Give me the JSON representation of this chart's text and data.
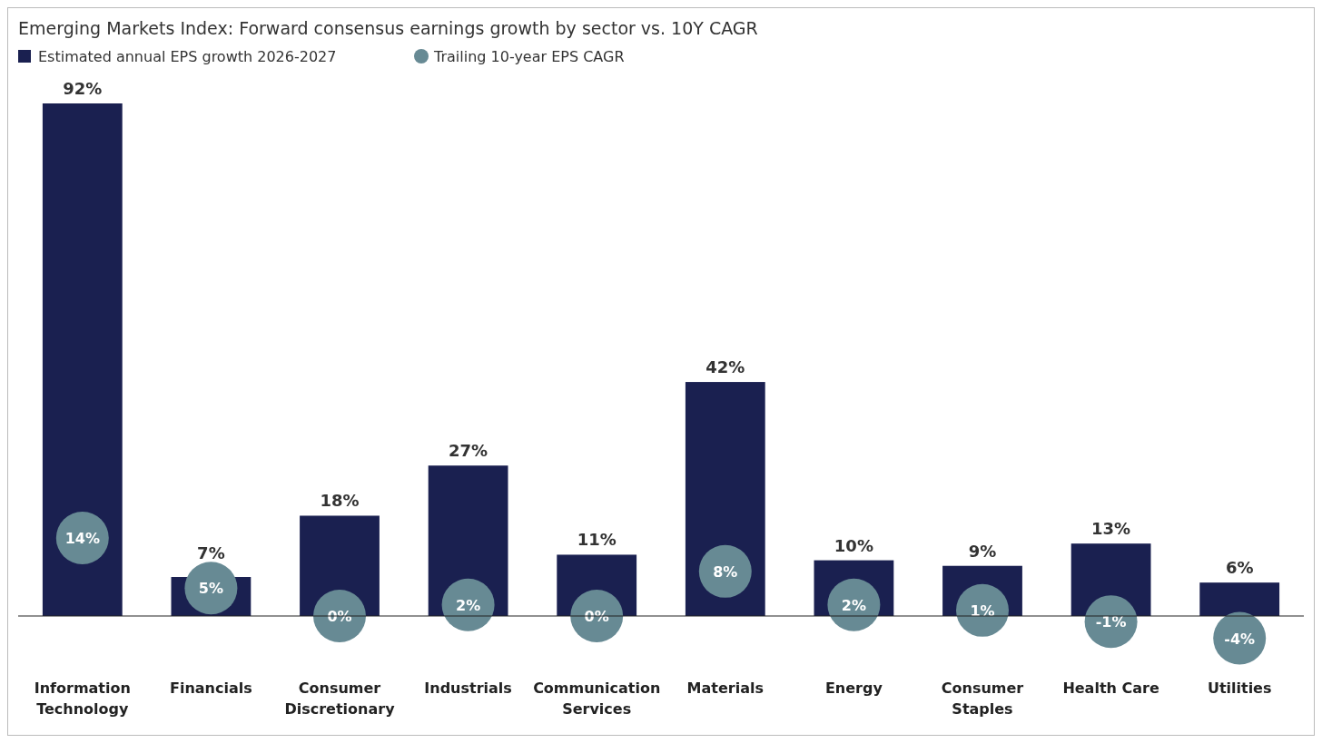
{
  "chart_data": {
    "type": "bar",
    "title": "Emerging Markets Index: Forward consensus earnings growth by sector vs. 10Y CAGR",
    "categories": [
      "Information Technology",
      "Financials",
      "Consumer Discretionary",
      "Industrials",
      "Communication Services",
      "Materials",
      "Energy",
      "Consumer Staples",
      "Health Care",
      "Utilities"
    ],
    "legend": "top left",
    "series": [
      {
        "name": "Estimated annual EPS growth 2026-2027",
        "color": "#1a2050",
        "values": [
          92,
          7,
          18,
          27,
          11,
          42,
          10,
          9,
          13,
          6
        ],
        "value_labels": [
          "92%",
          "7%",
          "18%",
          "27%",
          "11%",
          "42%",
          "10%",
          "9%",
          "13%",
          "6%"
        ]
      },
      {
        "name": "Trailing 10-year EPS CAGR",
        "type": "scatter",
        "marker": "circle",
        "color": "#678a94",
        "values": [
          14,
          5,
          0,
          2,
          0,
          8,
          2,
          1,
          -1,
          -4
        ],
        "value_labels": [
          "14%",
          "5%",
          "0%",
          "2%",
          "0%",
          "8%",
          "2%",
          "1%",
          "-1%",
          "-4%"
        ]
      }
    ]
  }
}
